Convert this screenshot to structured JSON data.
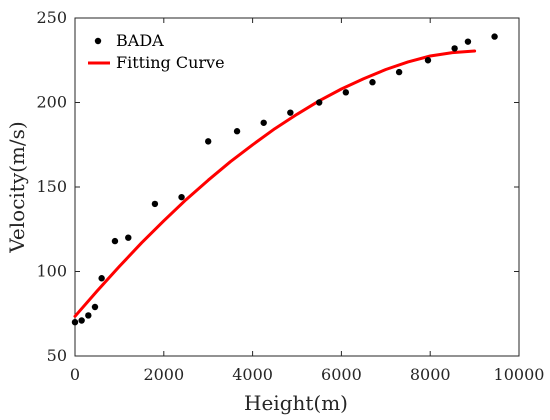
{
  "chart_data": {
    "type": "scatter",
    "xlabel": "Height(m)",
    "ylabel": "Velocity(m/s)",
    "xlim": [
      0,
      10000
    ],
    "ylim": [
      50,
      250
    ],
    "xticks": [
      0,
      2000,
      4000,
      6000,
      8000,
      10000
    ],
    "yticks": [
      50,
      100,
      150,
      200,
      250
    ],
    "grid": false,
    "legend_position": "top-left",
    "series": [
      {
        "name": "BADA",
        "kind": "scatter",
        "color": "#000000",
        "x": [
          0,
          150,
          300,
          450,
          600,
          900,
          1200,
          1800,
          2400,
          3000,
          3650,
          4250,
          4850,
          5500,
          6100,
          6700,
          7300,
          7950,
          8550,
          8850,
          9450
        ],
        "y": [
          70,
          71,
          74,
          79,
          96,
          118,
          120,
          140,
          144,
          177,
          183,
          188,
          194,
          200,
          206,
          212,
          218,
          225,
          232,
          236,
          239
        ]
      },
      {
        "name": "Fitting Curve",
        "kind": "line",
        "color": "#ff0000",
        "x": [
          0,
          500,
          1000,
          1500,
          2000,
          2500,
          3000,
          3500,
          4000,
          4500,
          5000,
          5500,
          6000,
          6500,
          7000,
          7500,
          8000,
          8500,
          9000
        ],
        "y": [
          73.5,
          88.5,
          103,
          117,
          130,
          142.5,
          154,
          165,
          175,
          184.5,
          193,
          201,
          208,
          214,
          219.5,
          224,
          227.5,
          229.5,
          230.5
        ]
      }
    ]
  }
}
